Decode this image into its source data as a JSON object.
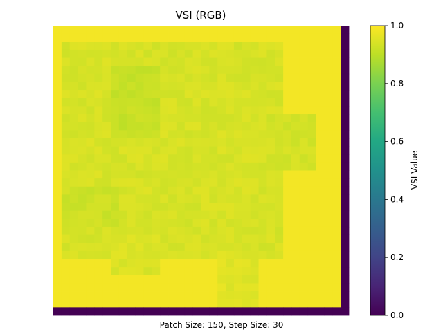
{
  "chart_data": {
    "type": "heatmap",
    "title": "VSI (RGB)",
    "xlabel": "Patch Size: 150, Step Size: 30",
    "ylabel": "",
    "rows": 36,
    "cols": 36,
    "colormap": "viridis",
    "vmin": 0.0,
    "vmax": 1.0,
    "base_value": 0.985,
    "right_edge_column_value": 0.0,
    "bottom_edge_row_value": 0.0,
    "colorbar": {
      "label": "VSI Value",
      "ticks": [
        "0.0",
        "0.2",
        "0.4",
        "0.6",
        "0.8",
        "1.0"
      ]
    },
    "features": [
      {
        "label": "central-green-region",
        "rows": [
          2,
          28
        ],
        "cols": [
          1,
          27
        ],
        "value": 0.94
      },
      {
        "label": "upper-left-patch",
        "rows": [
          5,
          13
        ],
        "cols": [
          7,
          12
        ],
        "value": 0.915
      },
      {
        "label": "right-center-patch",
        "rows": [
          11,
          17
        ],
        "cols": [
          26,
          31
        ],
        "value": 0.935
      },
      {
        "label": "left-lower-patch",
        "rows": [
          20,
          24
        ],
        "cols": [
          1,
          7
        ],
        "value": 0.925
      },
      {
        "label": "lower-center-patch",
        "rows": [
          25,
          30
        ],
        "cols": [
          7,
          12
        ],
        "value": 0.945
      },
      {
        "label": "bottom-column-strip",
        "rows": [
          28,
          35
        ],
        "cols": [
          20,
          24
        ],
        "value": 0.955
      }
    ]
  }
}
